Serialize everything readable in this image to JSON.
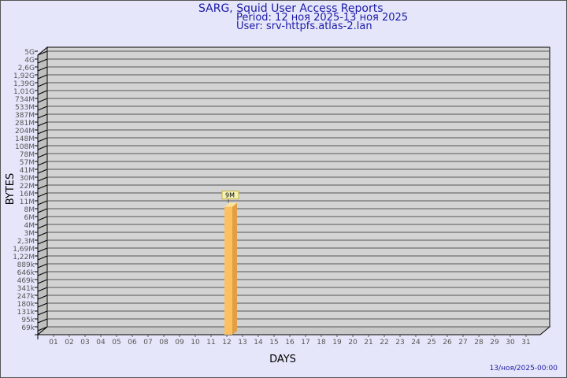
{
  "header": {
    "title": "SARG, Squid User Access Reports",
    "period": "Period: 12 ноя 2025-13 ноя 2025",
    "user": "User: srv-httpfs.atlas-2.lan"
  },
  "footer": {
    "timestamp": "13/ноя/2025-00:00"
  },
  "colors": {
    "plot_bg": "#d3d3d3",
    "bar_front": "#fcc062",
    "bar_side": "#e0a043",
    "bar_top": "#fde39a",
    "label_bg": "#f5f2b8",
    "text": "#1a1aa6"
  },
  "chart_data": {
    "type": "bar",
    "xlabel": "DAYS",
    "ylabel": "BYTES",
    "yscale": "log",
    "y_tick_labels": [
      "5G",
      "4G",
      "2,6G",
      "1,92G",
      "1,39G",
      "1,01G",
      "734M",
      "533M",
      "387M",
      "281M",
      "204M",
      "148M",
      "108M",
      "78M",
      "57M",
      "41M",
      "30M",
      "22M",
      "16M",
      "11M",
      "8M",
      "6M",
      "4M",
      "3M",
      "2,3M",
      "1,69M",
      "1,22M",
      "889k",
      "646k",
      "469k",
      "341k",
      "247k",
      "180k",
      "131k",
      "95k",
      "69k"
    ],
    "categories": [
      "01",
      "02",
      "03",
      "04",
      "05",
      "06",
      "07",
      "08",
      "09",
      "10",
      "11",
      "12",
      "13",
      "14",
      "15",
      "16",
      "17",
      "18",
      "19",
      "20",
      "21",
      "22",
      "23",
      "24",
      "25",
      "26",
      "27",
      "28",
      "29",
      "30",
      "31"
    ],
    "values": [
      0,
      0,
      0,
      0,
      0,
      0,
      0,
      0,
      0,
      0,
      0,
      9000000,
      0,
      0,
      0,
      0,
      0,
      0,
      0,
      0,
      0,
      0,
      0,
      0,
      0,
      0,
      0,
      0,
      0,
      0,
      0
    ],
    "data_labels": {
      "12": "9M"
    },
    "grid": true,
    "style": "3d"
  }
}
